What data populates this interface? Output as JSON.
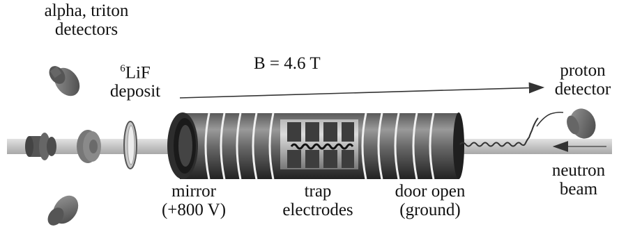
{
  "labels": {
    "alpha_triton_line1": "alpha, triton",
    "alpha_triton_line2": "detectors",
    "lif_superscript": "6",
    "lif_main": "LiF",
    "lif_line2": "deposit",
    "field": "B = 4.6 T",
    "proton_line1": "proton",
    "proton_line2": "detector",
    "neutron_line1": "neutron",
    "neutron_line2": "beam",
    "mirror_line1": "mirror",
    "mirror_line2": "(+800 V)",
    "trap_line1": "trap",
    "trap_line2": "electrodes",
    "door_line1": "door open",
    "door_line2": "(ground)"
  },
  "colors": {
    "beam": "#c9c9c9",
    "cylinder_dark": "#3a3a3a",
    "cylinder_light": "#bdbdbd",
    "detector": "#707070",
    "arrow": "#333333"
  }
}
